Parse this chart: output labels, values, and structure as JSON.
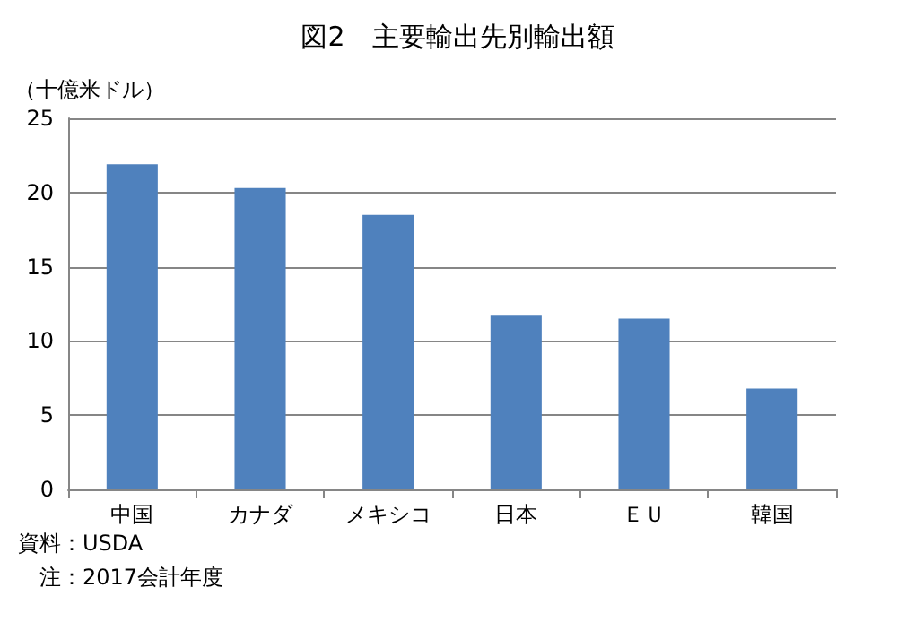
{
  "chart_data": {
    "type": "bar",
    "title": "図2　主要輸出先別輸出額",
    "ylabel": "（十億米ドル）",
    "categories": [
      "中国",
      "カナダ",
      "メキシコ",
      "日本",
      "ＥＵ",
      "韓国"
    ],
    "values": [
      21.9,
      20.3,
      18.5,
      11.7,
      11.5,
      6.8
    ],
    "color": "#4f81bd",
    "ylim": [
      0,
      25
    ],
    "yticks": [
      0,
      5,
      10,
      15,
      20,
      25
    ],
    "grid": "y",
    "annotations": [
      "資料：USDA",
      "注：2017会計年度"
    ]
  }
}
